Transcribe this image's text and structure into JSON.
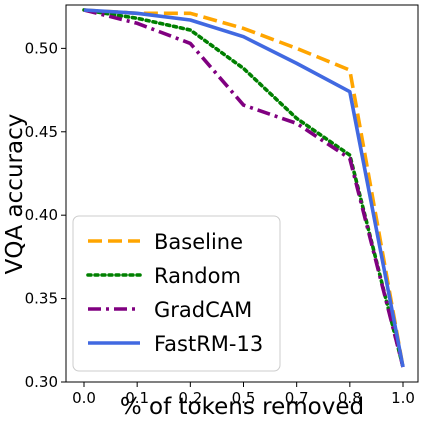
{
  "chart_data": {
    "type": "line",
    "xlabel": "% of tokens removed",
    "ylabel": "VQA accuracy",
    "x_tick_labels": [
      "0.0",
      "0.1",
      "0.2",
      "0.5",
      "0.7",
      "0.8",
      "1.0"
    ],
    "y_ticks": [
      0.3,
      0.35,
      0.4,
      0.45,
      0.5
    ],
    "y_tick_labels": [
      "0.30",
      "0.35",
      "0.40",
      "0.45",
      "0.50"
    ],
    "ylim": [
      0.3,
      0.526
    ],
    "x_scale": "categorical (equally spaced ticks)",
    "grid": false,
    "legend_position": "lower-left",
    "series": [
      {
        "name": "Baseline",
        "color": "#FFA500",
        "style": "dashed",
        "values": [
          0.523,
          0.521,
          0.521,
          0.512,
          0.5,
          0.487,
          0.309
        ]
      },
      {
        "name": "Random",
        "color": "#008000",
        "style": "dotted",
        "values": [
          0.523,
          0.518,
          0.511,
          0.488,
          0.458,
          0.436,
          0.309
        ]
      },
      {
        "name": "GradCAM",
        "color": "#800080",
        "style": "dashdot",
        "values": [
          0.523,
          0.515,
          0.503,
          0.466,
          0.455,
          0.434,
          0.309
        ]
      },
      {
        "name": "FastRM-13",
        "color": "#4169E1",
        "style": "solid",
        "values": [
          0.523,
          0.521,
          0.517,
          0.507,
          0.491,
          0.474,
          0.309
        ]
      }
    ]
  }
}
